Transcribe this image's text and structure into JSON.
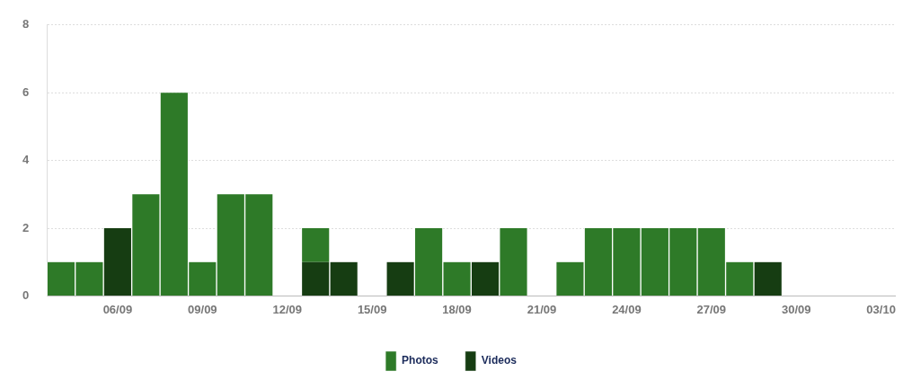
{
  "chart_data": {
    "type": "bar",
    "stacked": true,
    "categories": [
      null,
      null,
      "06/09",
      null,
      null,
      "09/09",
      null,
      null,
      "12/09",
      null,
      null,
      "15/09",
      null,
      null,
      "18/09",
      null,
      null,
      "21/09",
      null,
      null,
      "24/09",
      null,
      null,
      "27/09",
      null,
      null,
      "30/09",
      null,
      null,
      "03/10"
    ],
    "series": [
      {
        "name": "Videos",
        "color": "#163d12",
        "values": [
          null,
          null,
          2,
          null,
          null,
          null,
          null,
          null,
          null,
          1,
          1,
          null,
          1,
          null,
          null,
          1,
          null,
          null,
          null,
          null,
          null,
          null,
          null,
          null,
          null,
          1,
          null,
          null,
          null,
          null
        ]
      },
      {
        "name": "Photos",
        "color": "#2e7a28",
        "values": [
          1,
          1,
          null,
          3,
          6,
          1,
          3,
          3,
          null,
          1,
          null,
          null,
          null,
          2,
          1,
          null,
          2,
          null,
          1,
          2,
          2,
          2,
          2,
          2,
          1,
          null,
          null,
          null,
          null,
          null
        ]
      }
    ],
    "ylim": [
      0,
      8
    ],
    "yticks": [
      0,
      2,
      4,
      6,
      8
    ],
    "grid": "y",
    "legend": "bottom"
  }
}
